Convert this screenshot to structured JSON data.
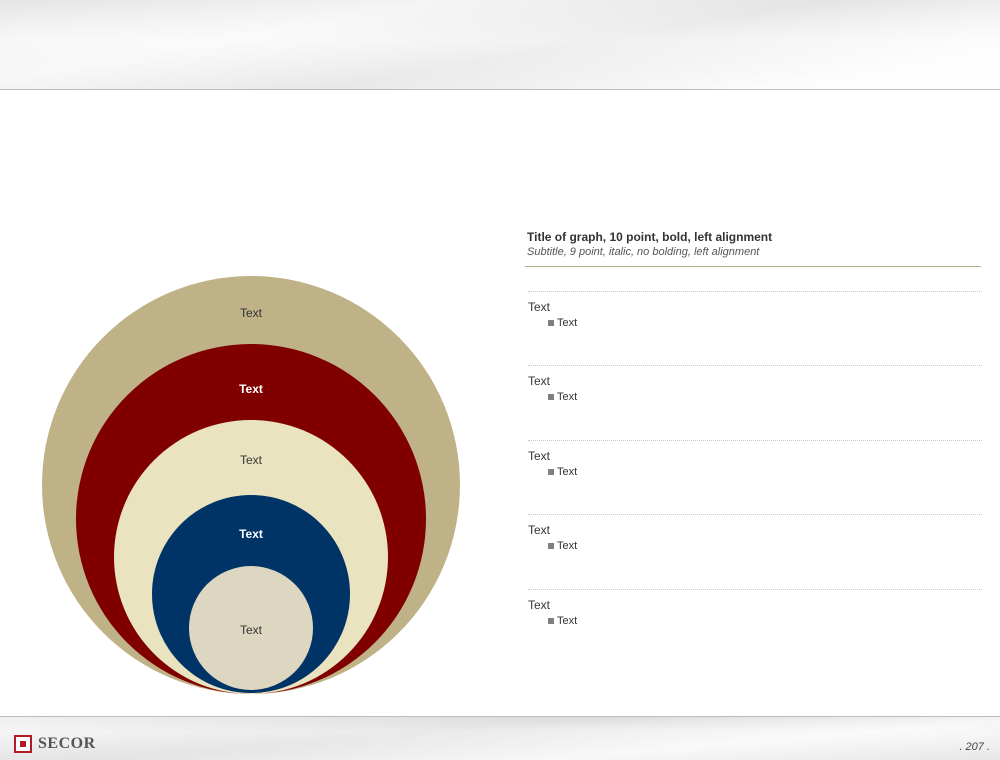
{
  "graph": {
    "title": "Title of graph, 10 point, bold, left alignment",
    "subtitle": "Subtitle, 9 point, italic, no bolding, left alignment"
  },
  "rings": [
    {
      "label": "Text",
      "color": "#bfb286",
      "text_color": "#333333",
      "bold": false
    },
    {
      "label": "Text",
      "color": "#800000",
      "text_color": "#ffffff",
      "bold": true
    },
    {
      "label": "Text",
      "color": "#e9e3bf",
      "text_color": "#333333",
      "bold": false
    },
    {
      "label": "Text",
      "color": "#003366",
      "text_color": "#ffffff",
      "bold": true
    },
    {
      "label": "Text",
      "color": "#ddd6c0",
      "text_color": "#333333",
      "bold": false
    }
  ],
  "rows": [
    {
      "title": "Text",
      "bullet": "Text"
    },
    {
      "title": "Text",
      "bullet": "Text"
    },
    {
      "title": "Text",
      "bullet": "Text"
    },
    {
      "title": "Text",
      "bullet": "Text"
    },
    {
      "title": "Text",
      "bullet": "Text"
    }
  ],
  "footer": {
    "logo_text": "SECOR",
    "page_number": ". 207 .",
    "logo_color": "#b01c24"
  }
}
